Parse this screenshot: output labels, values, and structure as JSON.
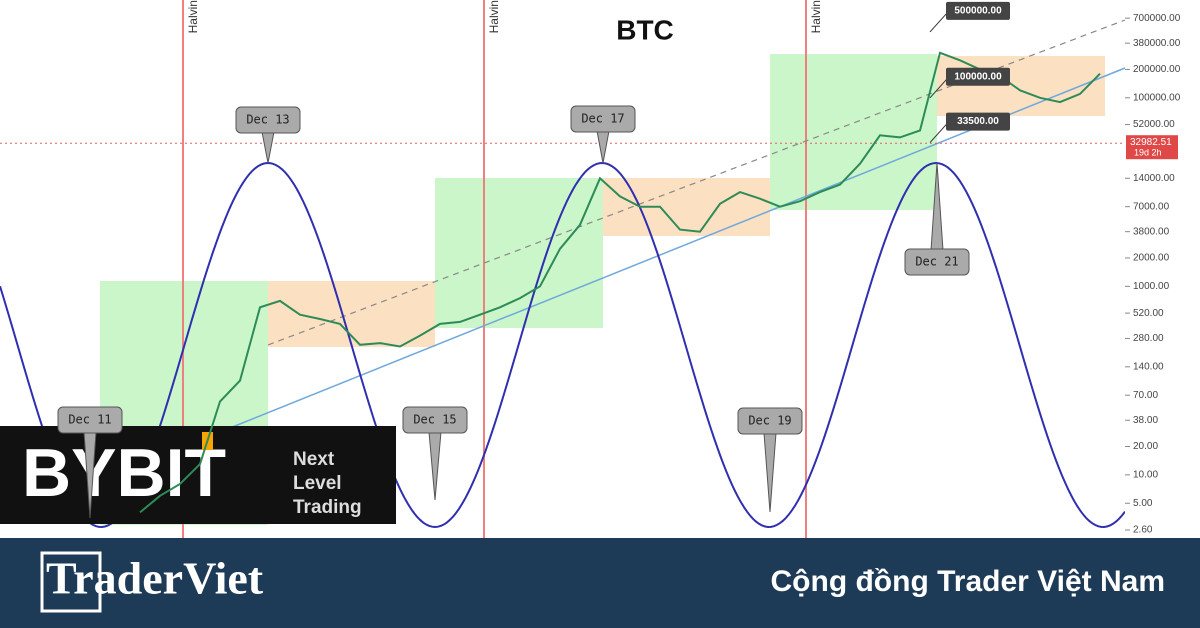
{
  "chart_data": {
    "type": "line",
    "title": "BTC",
    "yscale": "log",
    "categories": [
      null,
      null,
      null,
      null,
      null,
      null,
      null,
      null,
      null,
      null,
      null,
      null,
      null,
      null,
      null,
      null,
      null,
      null,
      null,
      null,
      null,
      null,
      null,
      null,
      null,
      null,
      null,
      null,
      null,
      null,
      null,
      null,
      null,
      null,
      null,
      null,
      null,
      null,
      null,
      null,
      null,
      null,
      null,
      null,
      null,
      null,
      null,
      null,
      null
    ],
    "series": [
      {
        "color": "#2e8b57",
        "values": [
          4,
          6,
          8,
          13,
          60,
          100,
          600,
          700,
          500,
          450,
          400,
          240,
          250,
          230,
          300,
          400,
          420,
          500,
          600,
          750,
          1000,
          2500,
          4500,
          14000,
          9000,
          7000,
          7000,
          4000,
          3800,
          7500,
          10000,
          8500,
          7000,
          8000,
          10000,
          12000,
          20000,
          40000,
          38000,
          45000,
          300000,
          250000,
          200000,
          170000,
          120000,
          100000,
          90000,
          110000,
          180000
        ]
      }
    ],
    "ylim": [
      2.14,
      1090000
    ],
    "yticks": [
      {
        "value": 700000,
        "label": "700000.00"
      },
      {
        "value": 380000,
        "label": "380000.00"
      },
      {
        "value": 200000,
        "label": "200000.00"
      },
      {
        "value": 100000,
        "label": "100000.00"
      },
      {
        "value": 52000,
        "label": "52000.00"
      },
      {
        "value": 14000,
        "label": "14000.00"
      },
      {
        "value": 7000,
        "label": "7000.00"
      },
      {
        "value": 3800,
        "label": "3800.00"
      },
      {
        "value": 2000,
        "label": "2000.00"
      },
      {
        "value": 1000,
        "label": "1000.00"
      },
      {
        "value": 520,
        "label": "520.00"
      },
      {
        "value": 280,
        "label": "280.00"
      },
      {
        "value": 140,
        "label": "140.00"
      },
      {
        "value": 70,
        "label": "70.00"
      },
      {
        "value": 38,
        "label": "38.00"
      },
      {
        "value": 20,
        "label": "20.00"
      },
      {
        "value": 10,
        "label": "10.00"
      },
      {
        "value": 5,
        "label": "5.00"
      },
      {
        "value": 2.6,
        "label": "2.60"
      }
    ],
    "current_price": 32982.51,
    "countdown": "19d 2h",
    "price_labels": [
      {
        "value": 500000,
        "label": "500000.00"
      },
      {
        "value": 100000,
        "label": "100000.00"
      },
      {
        "value": 33500,
        "label": "33500.00"
      }
    ],
    "cycle_labels": [
      "Dec 11",
      "Dec 13",
      "Dec 15",
      "Dec 17",
      "Dec 19",
      "Dec 21"
    ],
    "halving_labels": [
      "Halvin",
      "Halvin",
      "Halvin"
    ]
  },
  "branding": {
    "bybit": "BYBIT",
    "slogan": [
      "Next",
      "Level",
      "Trading"
    ],
    "site": "TraderViet",
    "tagline": "Cộng đồng Trader Việt Nam"
  }
}
